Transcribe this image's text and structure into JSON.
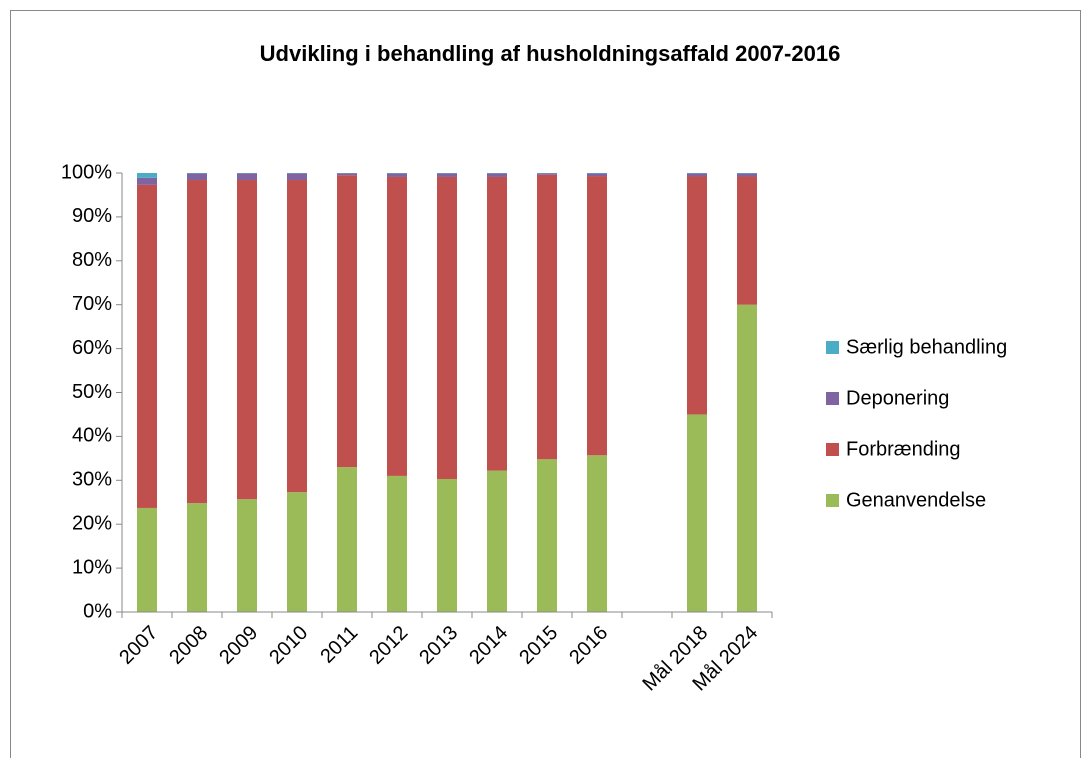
{
  "chart_data": {
    "type": "stacked_bar",
    "title": "Udvikling i behandling af husholdningsaffald 2007-2016",
    "categories": [
      "2007",
      "2008",
      "2009",
      "2010",
      "2011",
      "2012",
      "2013",
      "2014",
      "2015",
      "2016",
      null,
      "Mål 2018",
      "Mål 2024"
    ],
    "series": [
      {
        "name": "Genanvendelse",
        "color": "#9bbb59",
        "values": [
          23.7,
          24.8,
          25.7,
          27.3,
          33.0,
          31.0,
          30.3,
          32.2,
          34.8,
          35.7,
          null,
          45,
          70
        ]
      },
      {
        "name": "Forbrænding",
        "color": "#c0504d",
        "values": [
          73.6,
          73.6,
          72.7,
          71.1,
          66.5,
          68.1,
          68.8,
          66.9,
          64.8,
          63.6,
          null,
          54.2,
          29.2
        ]
      },
      {
        "name": "Deponering",
        "color": "#8064a2",
        "values": [
          1.6,
          1.5,
          1.5,
          1.5,
          0.4,
          0.8,
          0.8,
          0.8,
          0.3,
          0.6,
          null,
          0.7,
          0.7
        ]
      },
      {
        "name": "Særlig behandling",
        "color": "#4bacc6",
        "values": [
          1.1,
          0.1,
          0.1,
          0.1,
          0.1,
          0.1,
          0.1,
          0.1,
          0.1,
          0.1,
          null,
          0.1,
          0.1
        ]
      }
    ],
    "ylim": [
      0,
      100
    ],
    "yticks": [
      {
        "value": 0,
        "label": "0%"
      },
      {
        "value": 10,
        "label": "10%"
      },
      {
        "value": 20,
        "label": "20%"
      },
      {
        "value": 30,
        "label": "30%"
      },
      {
        "value": 40,
        "label": "40%"
      },
      {
        "value": 50,
        "label": "50%"
      },
      {
        "value": 60,
        "label": "60%"
      },
      {
        "value": 70,
        "label": "70%"
      },
      {
        "value": 80,
        "label": "80%"
      },
      {
        "value": 90,
        "label": "90%"
      },
      {
        "value": 100,
        "label": "100%"
      }
    ],
    "legend": "right"
  }
}
